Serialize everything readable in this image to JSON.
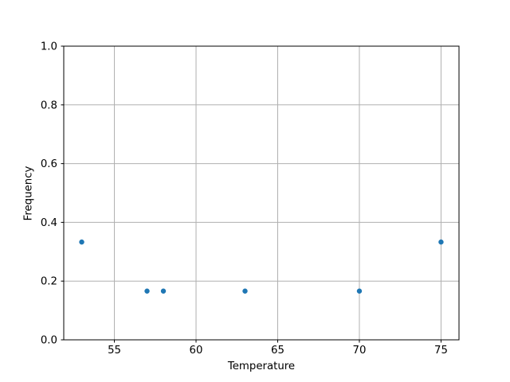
{
  "chart_data": {
    "type": "scatter",
    "title": "",
    "xlabel": "Temperature",
    "ylabel": "Frequency",
    "x": [
      53,
      57,
      58,
      63,
      70,
      75
    ],
    "y": [
      0.333,
      0.166,
      0.166,
      0.166,
      0.166,
      0.333
    ],
    "xlim": [
      51.9,
      76.1
    ],
    "ylim": [
      0.0,
      1.0
    ],
    "xtick_values": [
      55,
      60,
      65,
      70,
      75
    ],
    "xtick_labels": [
      "55",
      "60",
      "65",
      "70",
      "75"
    ],
    "ytick_values": [
      0.0,
      0.2,
      0.4,
      0.6,
      0.8,
      1.0
    ],
    "ytick_labels": [
      "0.0",
      "0.2",
      "0.4",
      "0.6",
      "0.8",
      "1.0"
    ],
    "grid": true,
    "legend_visible": false,
    "marker_color": "#1f77b4",
    "grid_color": "#b0b0b0",
    "spine_color": "#000000",
    "text_color": "#000000"
  }
}
